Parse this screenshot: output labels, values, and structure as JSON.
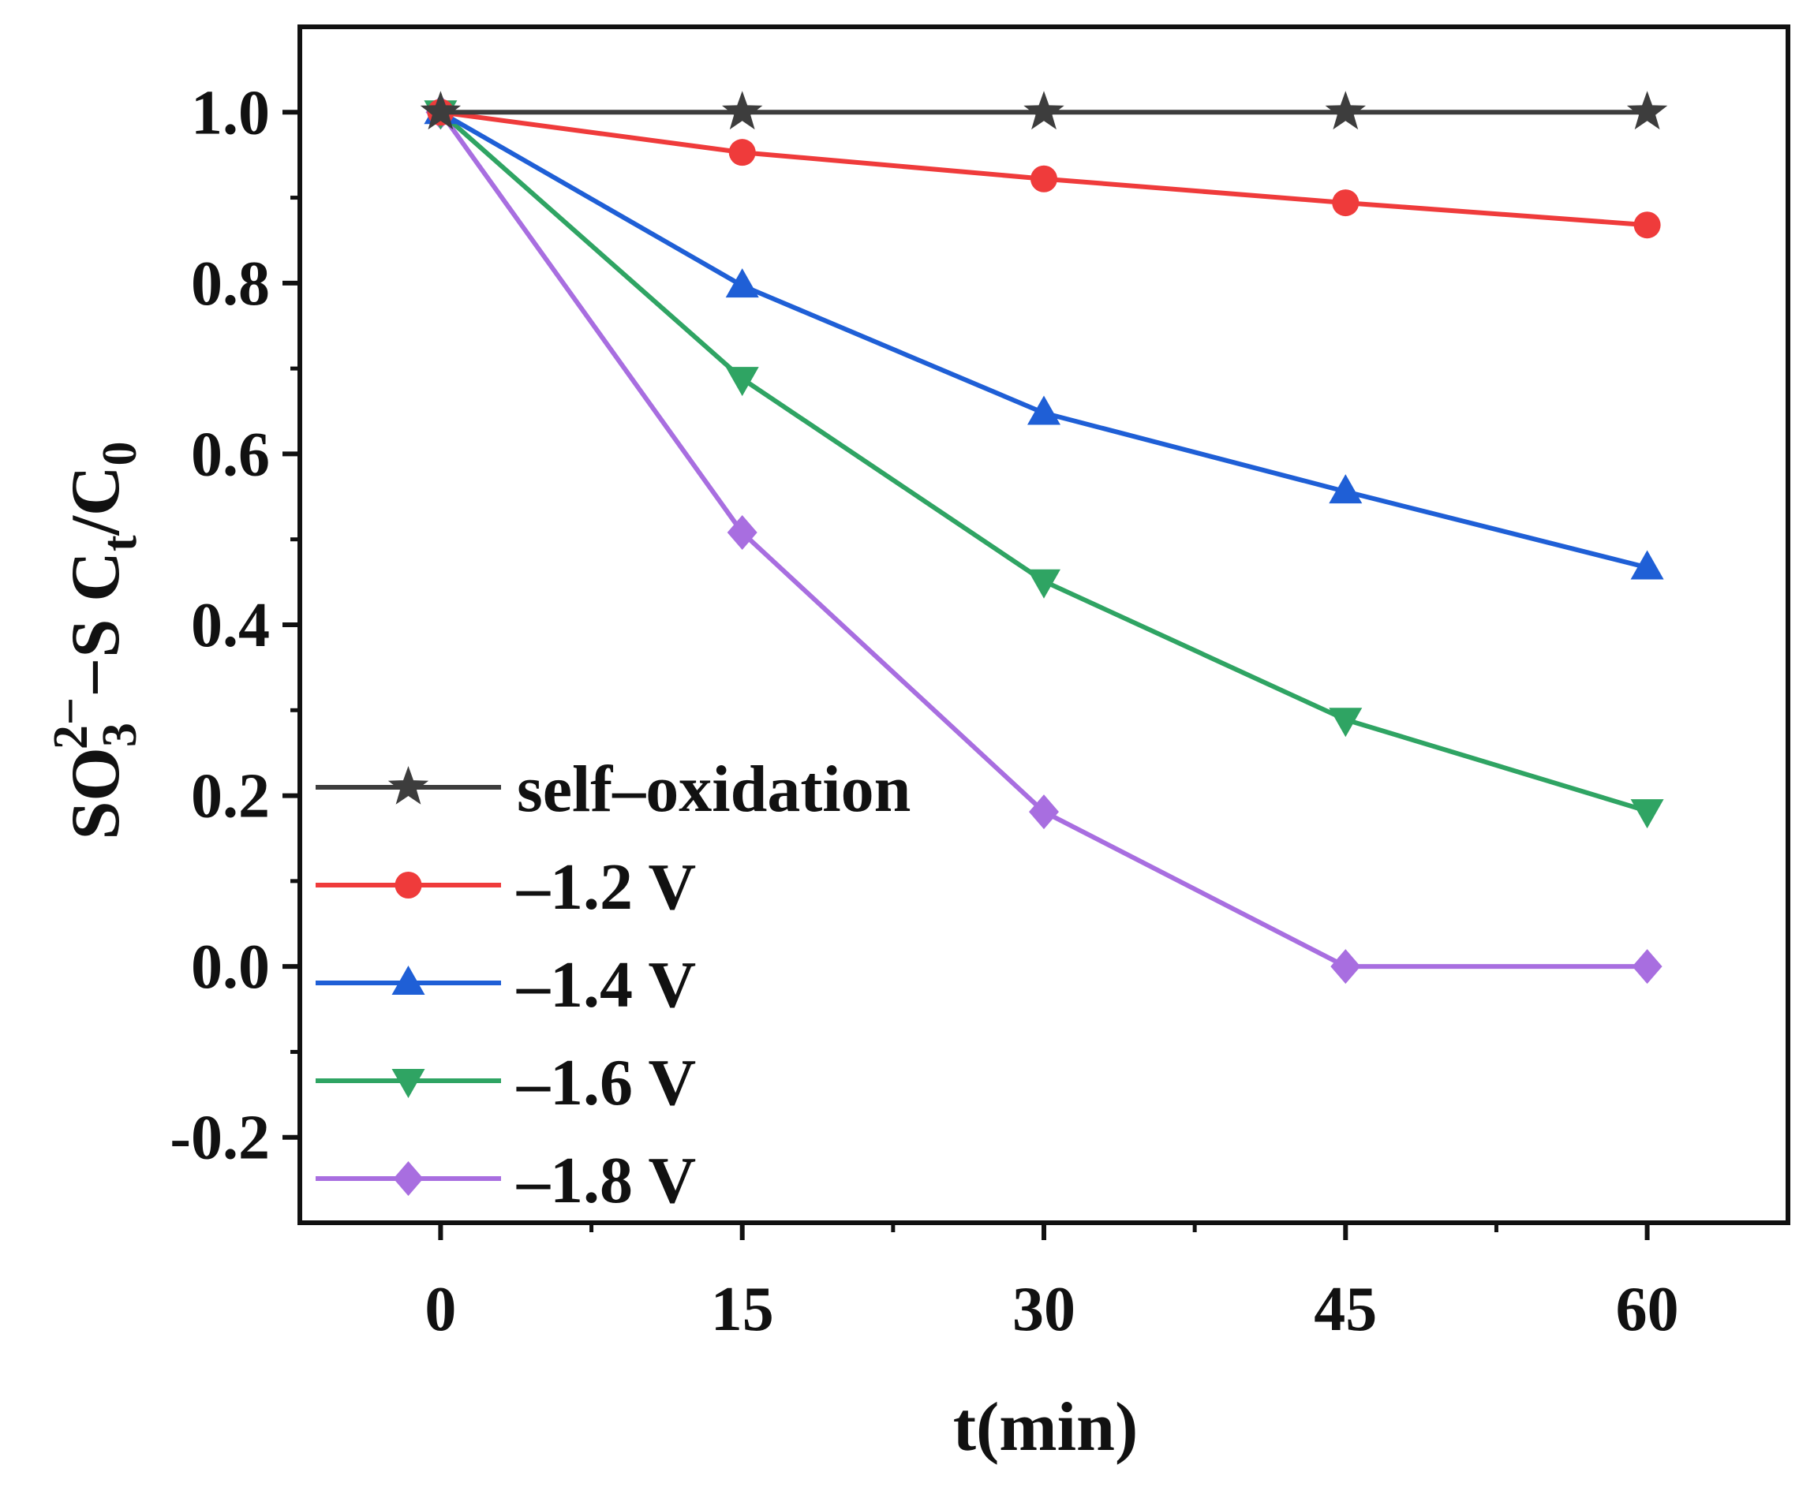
{
  "chart_data": {
    "type": "line",
    "x": [
      0,
      15,
      30,
      45,
      60
    ],
    "series": [
      {
        "name": "self–oxidation",
        "color": "#3d3d3d",
        "marker": "star",
        "values": [
          1.0,
          1.0,
          1.0,
          1.0,
          1.0
        ]
      },
      {
        "name": "–1.2 V",
        "color": "#ef3b3b",
        "marker": "circle",
        "values": [
          1.0,
          0.953,
          0.922,
          0.894,
          0.868
        ]
      },
      {
        "name": "–1.4 V",
        "color": "#1f5fd6",
        "marker": "triangle-up",
        "values": [
          1.0,
          0.797,
          0.648,
          0.556,
          0.467
        ]
      },
      {
        "name": "–1.6 V",
        "color": "#2fa463",
        "marker": "triangle-down",
        "values": [
          1.0,
          0.688,
          0.451,
          0.289,
          0.182
        ]
      },
      {
        "name": "–1.8 V",
        "color": "#a86ee0",
        "marker": "diamond",
        "values": [
          1.0,
          0.508,
          0.181,
          0.0,
          0.0
        ]
      }
    ],
    "xlabel": "t(min)",
    "ylabel": {
      "main": "SO",
      "sub1": "3",
      "sup": "2−",
      "mid": "−S C",
      "sub2": "t",
      "slash": "/C",
      "sub3": "0"
    },
    "xlim": [
      -7,
      67
    ],
    "ylim": [
      -0.3,
      1.1
    ],
    "xticks": [
      0,
      15,
      30,
      45,
      60
    ],
    "xtick_labels": [
      "0",
      "15",
      "30",
      "45",
      "60"
    ],
    "yticks": [
      -0.2,
      0.0,
      0.2,
      0.4,
      0.6,
      0.8,
      1.0
    ],
    "ytick_labels": [
      "-0.2",
      "0.0",
      "0.2",
      "0.4",
      "0.6",
      "0.8",
      "1.0"
    ],
    "grid": false,
    "legend_position": "bottom-left"
  }
}
